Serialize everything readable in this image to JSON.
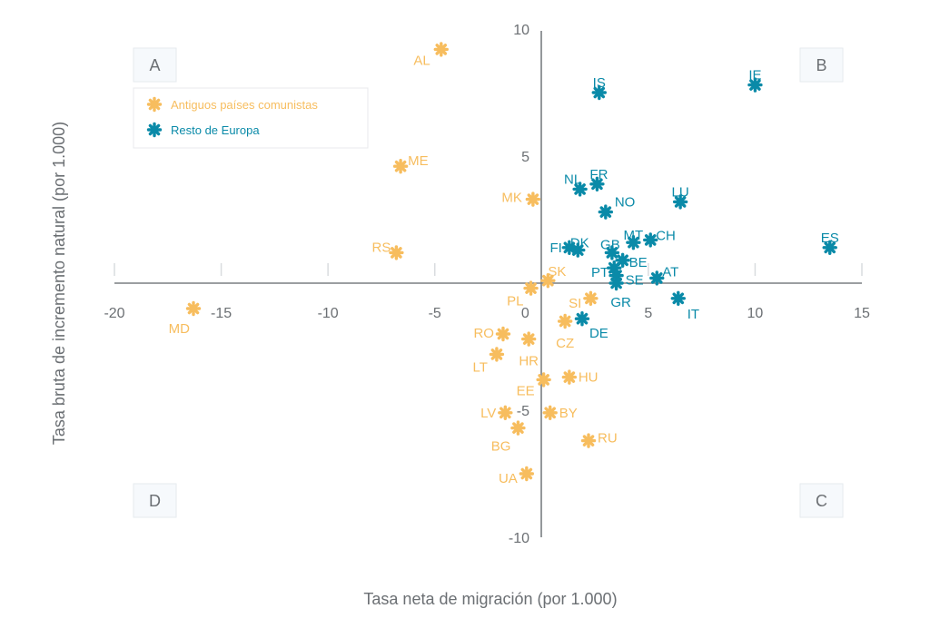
{
  "chart_data": {
    "type": "scatter",
    "title": "",
    "xlabel": "Tasa neta de migración (por 1.000)",
    "ylabel": "Tasa bruta de incremento natural (por 1.000)",
    "xlim": [
      -20,
      15
    ],
    "ylim": [
      -10,
      10
    ],
    "x_ticks": [
      -20,
      -15,
      -10,
      -5,
      0,
      5,
      10,
      15
    ],
    "y_ticks": [
      10,
      5,
      -5,
      -10
    ],
    "grid": false,
    "legend_position": "top-left",
    "quadrant_labels": {
      "A": "A",
      "B": "B",
      "C": "C",
      "D": "D"
    },
    "series": [
      {
        "name": "Antiguos países comunistas",
        "color": "#f7bd5e",
        "points": [
          {
            "label": "AL",
            "x": -4.7,
            "y": 9.2
          },
          {
            "label": "ME",
            "x": -6.6,
            "y": 4.6
          },
          {
            "label": "MK",
            "x": -0.4,
            "y": 3.3
          },
          {
            "label": "RS",
            "x": -6.8,
            "y": 1.2
          },
          {
            "label": "MD",
            "x": -16.3,
            "y": -1.0
          },
          {
            "label": "SK",
            "x": 0.3,
            "y": 0.1
          },
          {
            "label": "PL",
            "x": -0.5,
            "y": -0.2
          },
          {
            "label": "SI",
            "x": 2.3,
            "y": -0.6
          },
          {
            "label": "CZ",
            "x": 1.1,
            "y": -1.5
          },
          {
            "label": "RO",
            "x": -1.8,
            "y": -2.0
          },
          {
            "label": "HR",
            "x": -0.6,
            "y": -2.2
          },
          {
            "label": "LT",
            "x": -2.1,
            "y": -2.8
          },
          {
            "label": "EE",
            "x": 0.1,
            "y": -3.8
          },
          {
            "label": "HU",
            "x": 1.3,
            "y": -3.7
          },
          {
            "label": "LV",
            "x": -1.7,
            "y": -5.1
          },
          {
            "label": "BY",
            "x": 0.4,
            "y": -5.1
          },
          {
            "label": "BG",
            "x": -1.1,
            "y": -5.7
          },
          {
            "label": "RU",
            "x": 2.2,
            "y": -6.2
          },
          {
            "label": "UA",
            "x": -0.7,
            "y": -7.5
          }
        ]
      },
      {
        "name": "Resto de Europa",
        "color": "#0a8aa8",
        "points": [
          {
            "label": "IS",
            "x": 2.7,
            "y": 7.5
          },
          {
            "label": "IE",
            "x": 10.0,
            "y": 7.8
          },
          {
            "label": "NL",
            "x": 1.8,
            "y": 3.7
          },
          {
            "label": "FR",
            "x": 2.6,
            "y": 3.9
          },
          {
            "label": "NO",
            "x": 3.0,
            "y": 2.8
          },
          {
            "label": "LU",
            "x": 6.5,
            "y": 3.2
          },
          {
            "label": "MT",
            "x": 4.3,
            "y": 1.6
          },
          {
            "label": "CH",
            "x": 5.1,
            "y": 1.7
          },
          {
            "label": "FI",
            "x": 1.3,
            "y": 1.4
          },
          {
            "label": "DK",
            "x": 1.7,
            "y": 1.3
          },
          {
            "label": "GB",
            "x": 3.3,
            "y": 1.2
          },
          {
            "label": "ES",
            "x": 13.5,
            "y": 1.4
          },
          {
            "label": "BE",
            "x": 3.8,
            "y": 0.9
          },
          {
            "label": "PT",
            "x": 3.4,
            "y": 0.6
          },
          {
            "label": "SE",
            "x": 3.5,
            "y": 0.3
          },
          {
            "label": "GR",
            "x": 3.5,
            "y": 0.0
          },
          {
            "label": "AT",
            "x": 5.4,
            "y": 0.2
          },
          {
            "label": "IT",
            "x": 6.4,
            "y": -0.6
          },
          {
            "label": "DE",
            "x": 1.9,
            "y": -1.4
          }
        ]
      }
    ]
  }
}
